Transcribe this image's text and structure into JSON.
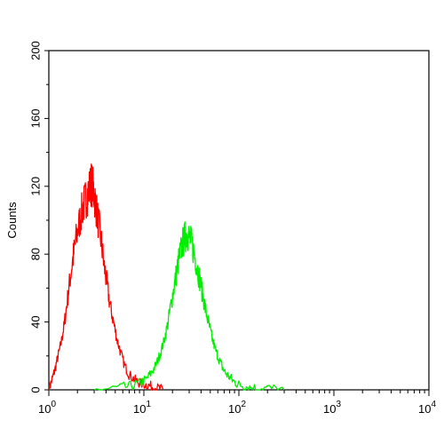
{
  "chart_data": {
    "type": "line",
    "title": "",
    "xlabel": "",
    "ylabel": "Counts",
    "x_scale": "log",
    "xlim": [
      1,
      10000
    ],
    "ylim": [
      0,
      200
    ],
    "x_ticks": [
      {
        "base": "10",
        "exp": "0"
      },
      {
        "base": "10",
        "exp": "1"
      },
      {
        "base": "10",
        "exp": "2"
      },
      {
        "base": "10",
        "exp": "3"
      },
      {
        "base": "10",
        "exp": "4"
      }
    ],
    "y_ticks": [
      "0",
      "40",
      "80",
      "120",
      "160",
      "200"
    ],
    "grid": false,
    "series": [
      {
        "color": "#ff0000",
        "points": [
          [
            1.0,
            0
          ],
          [
            1.08,
            6
          ],
          [
            1.16,
            12
          ],
          [
            1.25,
            20
          ],
          [
            1.35,
            28
          ],
          [
            1.45,
            38
          ],
          [
            1.56,
            52
          ],
          [
            1.68,
            66
          ],
          [
            1.8,
            78
          ],
          [
            1.92,
            88
          ],
          [
            2.05,
            96
          ],
          [
            2.2,
            104
          ],
          [
            2.35,
            110
          ],
          [
            2.5,
            114
          ],
          [
            2.65,
            118
          ],
          [
            2.8,
            122
          ],
          [
            2.95,
            118
          ],
          [
            3.1,
            110
          ],
          [
            3.3,
            100
          ],
          [
            3.55,
            88
          ],
          [
            3.8,
            74
          ],
          [
            4.1,
            62
          ],
          [
            4.4,
            50
          ],
          [
            4.8,
            40
          ],
          [
            5.2,
            30
          ],
          [
            5.7,
            22
          ],
          [
            6.3,
            14
          ],
          [
            7.0,
            9
          ],
          [
            8.0,
            6
          ],
          [
            9.0,
            4
          ],
          [
            10.5,
            3
          ],
          [
            12.0,
            2
          ],
          [
            14.0,
            1
          ],
          [
            16.0,
            0
          ]
        ]
      },
      {
        "color": "#00ee00",
        "points": [
          [
            3.0,
            0
          ],
          [
            5.0,
            1
          ],
          [
            7.0,
            2
          ],
          [
            9.0,
            4
          ],
          [
            10.5,
            6
          ],
          [
            12.0,
            10
          ],
          [
            13.5,
            15
          ],
          [
            15.0,
            22
          ],
          [
            16.5,
            30
          ],
          [
            18.0,
            40
          ],
          [
            19.5,
            52
          ],
          [
            21.0,
            62
          ],
          [
            22.5,
            72
          ],
          [
            24.0,
            80
          ],
          [
            25.5,
            86
          ],
          [
            27.0,
            90
          ],
          [
            28.5,
            92
          ],
          [
            30.0,
            90
          ],
          [
            32.0,
            86
          ],
          [
            34.0,
            80
          ],
          [
            36.5,
            72
          ],
          [
            39.0,
            64
          ],
          [
            42.0,
            55
          ],
          [
            45.0,
            46
          ],
          [
            49.0,
            37
          ],
          [
            53.0,
            29
          ],
          [
            58.0,
            22
          ],
          [
            64.0,
            16
          ],
          [
            70.0,
            11
          ],
          [
            78.0,
            8
          ],
          [
            88.0,
            5
          ],
          [
            100.0,
            3
          ],
          [
            120.0,
            2
          ],
          [
            150.0,
            1
          ],
          [
            200.0,
            1
          ],
          [
            300.0,
            0
          ]
        ]
      }
    ]
  }
}
